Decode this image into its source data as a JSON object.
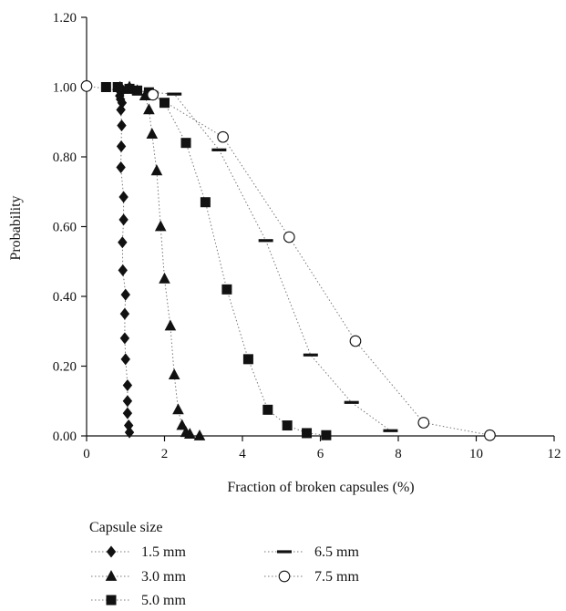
{
  "chart_data": {
    "type": "scatter",
    "xlabel": "Fraction of broken capsules (%)",
    "ylabel": "Probability",
    "xlim": [
      0,
      12
    ],
    "ylim": [
      0,
      1.2
    ],
    "x_ticks": [
      "0",
      "2",
      "4",
      "6",
      "8",
      "10",
      "12"
    ],
    "y_ticks": [
      "0.00",
      "0.20",
      "0.40",
      "0.60",
      "0.80",
      "1.00",
      "1.20"
    ],
    "legend_title": "Capsule size",
    "legend_position": "bottom-left",
    "grid": false,
    "series": [
      {
        "name": "1.5 mm",
        "marker": "diamond",
        "points": [
          [
            0.86,
            1.0
          ],
          [
            0.9,
            0.995
          ],
          [
            0.88,
            0.985
          ],
          [
            0.85,
            0.975
          ],
          [
            0.87,
            0.965
          ],
          [
            0.91,
            0.955
          ],
          [
            0.88,
            0.935
          ],
          [
            0.9,
            0.89
          ],
          [
            0.89,
            0.83
          ],
          [
            0.88,
            0.77
          ],
          [
            0.95,
            0.685
          ],
          [
            0.95,
            0.62
          ],
          [
            0.92,
            0.555
          ],
          [
            0.93,
            0.475
          ],
          [
            1.0,
            0.405
          ],
          [
            0.98,
            0.35
          ],
          [
            0.98,
            0.28
          ],
          [
            1.0,
            0.22
          ],
          [
            1.05,
            0.145
          ],
          [
            1.05,
            0.1
          ],
          [
            1.05,
            0.065
          ],
          [
            1.08,
            0.03
          ],
          [
            1.1,
            0.01
          ]
        ]
      },
      {
        "name": "3.0 mm",
        "marker": "triangle",
        "points": [
          [
            1.1,
            1.0
          ],
          [
            1.3,
            0.99
          ],
          [
            1.5,
            0.975
          ],
          [
            1.6,
            0.935
          ],
          [
            1.68,
            0.865
          ],
          [
            1.8,
            0.76
          ],
          [
            1.9,
            0.6
          ],
          [
            2.0,
            0.45
          ],
          [
            2.15,
            0.315
          ],
          [
            2.25,
            0.175
          ],
          [
            2.35,
            0.075
          ],
          [
            2.45,
            0.03
          ],
          [
            2.55,
            0.01
          ],
          [
            2.65,
            0.005
          ],
          [
            2.9,
            0.0
          ]
        ]
      },
      {
        "name": "5.0 mm",
        "marker": "square",
        "points": [
          [
            0.5,
            1.0
          ],
          [
            0.8,
            1.0
          ],
          [
            1.1,
            0.995
          ],
          [
            1.3,
            0.99
          ],
          [
            1.6,
            0.985
          ],
          [
            2.0,
            0.955
          ],
          [
            2.55,
            0.84
          ],
          [
            3.05,
            0.67
          ],
          [
            3.6,
            0.42
          ],
          [
            4.15,
            0.22
          ],
          [
            4.65,
            0.075
          ],
          [
            5.15,
            0.03
          ],
          [
            5.65,
            0.008
          ],
          [
            6.15,
            0.002
          ]
        ]
      },
      {
        "name": "6.5 mm",
        "marker": "dash",
        "points": [
          [
            1.65,
            0.985
          ],
          [
            2.25,
            0.98
          ],
          [
            3.4,
            0.82
          ],
          [
            4.6,
            0.56
          ],
          [
            5.75,
            0.232
          ],
          [
            6.8,
            0.096
          ],
          [
            7.8,
            0.015
          ]
        ]
      },
      {
        "name": "7.5 mm",
        "marker": "circle",
        "points": [
          [
            0.0,
            1.003
          ],
          [
            1.7,
            0.978
          ],
          [
            3.5,
            0.857
          ],
          [
            5.2,
            0.57
          ],
          [
            6.9,
            0.272
          ],
          [
            8.65,
            0.038
          ],
          [
            10.35,
            0.002
          ]
        ]
      }
    ]
  }
}
